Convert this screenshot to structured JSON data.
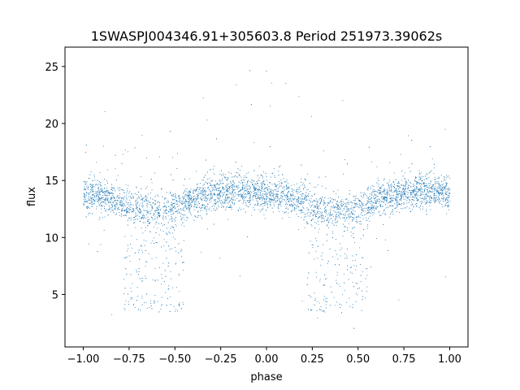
{
  "chart_data": {
    "type": "scatter",
    "title": "1SWASPJ004346.91+305603.8 Period 251973.39062s",
    "xlabel": "phase",
    "ylabel": "flux",
    "xlim": [
      -1.1,
      1.1
    ],
    "ylim": [
      0.4,
      26.7
    ],
    "xticks": [
      -1.0,
      -0.75,
      -0.5,
      -0.25,
      0.0,
      0.25,
      0.5,
      0.75,
      1.0
    ],
    "xtick_labels": [
      "−1.00",
      "−0.75",
      "−0.50",
      "−0.25",
      "0.00",
      "0.25",
      "0.50",
      "0.75",
      "1.00"
    ],
    "yticks": [
      5,
      10,
      15,
      20,
      25
    ],
    "ytick_labels": [
      "5",
      "10",
      "15",
      "20",
      "25"
    ],
    "grid": false,
    "point_color": "#1f77b4",
    "series": [
      {
        "x_range": [
          -1.0,
          1.0
        ],
        "baseline": [
          {
            "x": -1.0,
            "y": 13.8
          },
          {
            "x": -0.9,
            "y": 13.7
          },
          {
            "x": -0.75,
            "y": 12.8
          },
          {
            "x": -0.6,
            "y": 12.3
          },
          {
            "x": -0.5,
            "y": 12.6
          },
          {
            "x": -0.4,
            "y": 13.3
          },
          {
            "x": -0.25,
            "y": 13.9
          },
          {
            "x": -0.15,
            "y": 14.1
          },
          {
            "x": 0.0,
            "y": 13.8
          },
          {
            "x": 0.1,
            "y": 13.7
          },
          {
            "x": 0.25,
            "y": 12.8
          },
          {
            "x": 0.4,
            "y": 12.3
          },
          {
            "x": 0.5,
            "y": 12.6
          },
          {
            "x": 0.6,
            "y": 13.3
          },
          {
            "x": 0.75,
            "y": 13.9
          },
          {
            "x": 0.85,
            "y": 14.1
          },
          {
            "x": 1.0,
            "y": 13.8
          }
        ],
        "eclipse_minimum": 3.5,
        "eclipse_intervals": [
          [
            -0.78,
            -0.45
          ],
          [
            0.22,
            0.55
          ]
        ]
      }
    ]
  }
}
